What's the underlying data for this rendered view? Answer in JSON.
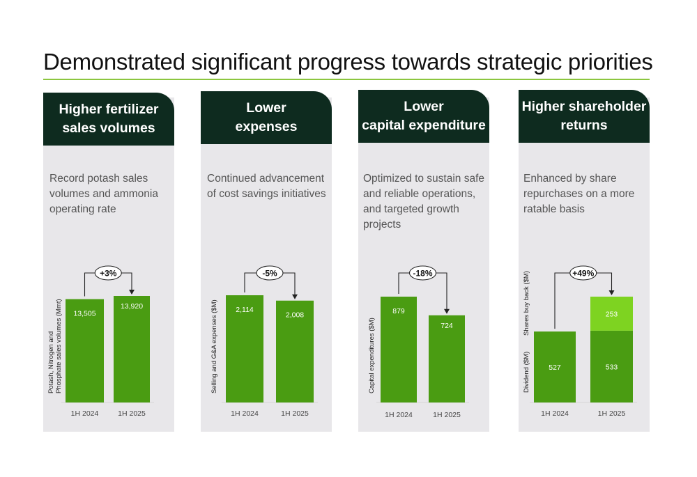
{
  "page": {
    "title": "Demonstrated significant progress towards strategic priorities"
  },
  "colors": {
    "bar_dark": "#4a9c12",
    "bar_light": "#7ed321",
    "header": "#0e2b1f",
    "rule": "#8cc63f",
    "panel": "#e8e7ea"
  },
  "panels": [
    {
      "heading": "Higher fertilizer\nsales volumes",
      "description": "Record potash sales\nvolumes and ammonia\noperating rate"
    },
    {
      "heading": "Lower\nexpenses",
      "description": "Continued advancement\nof cost savings initiatives"
    },
    {
      "heading": "Lower\ncapital expenditure",
      "description": "Optimized to sustain safe\nand reliable operations,\nand targeted growth\nprojects"
    },
    {
      "heading": "Higher shareholder\nreturns",
      "description": "Enhanced by share\nrepurchases on a more\nratable basis"
    }
  ],
  "chart_data": [
    {
      "type": "bar",
      "categories": [
        "1H 2024",
        "1H 2025"
      ],
      "series": [
        {
          "values": [
            13505,
            13920
          ],
          "labels": [
            "13,505",
            "13,920"
          ]
        }
      ],
      "ylabel": "Potash, Nitrogen and\nPhosphate sales volumes (Mmt)",
      "change": "+3%"
    },
    {
      "type": "bar",
      "categories": [
        "1H 2024",
        "1H 2025"
      ],
      "series": [
        {
          "values": [
            2114,
            2008
          ],
          "labels": [
            "2,114",
            "2,008"
          ]
        }
      ],
      "ylabel": "Selling and G&A expenses ($M)",
      "change": "-5%"
    },
    {
      "type": "bar",
      "categories": [
        "1H 2024",
        "1H 2025"
      ],
      "series": [
        {
          "values": [
            879,
            724
          ],
          "labels": [
            "879",
            "724"
          ]
        }
      ],
      "ylabel": "Capital expenditures ($M)",
      "change": "-18%"
    },
    {
      "type": "bar",
      "stacked": true,
      "categories": [
        "1H 2024",
        "1H 2025"
      ],
      "series": [
        {
          "name": "Dividend ($M)",
          "values": [
            527,
            533
          ],
          "labels": [
            "527",
            "533"
          ],
          "color": "#4a9c12"
        },
        {
          "name": "Shares buy back ($M)",
          "values": [
            0,
            253
          ],
          "labels": [
            "",
            "253"
          ],
          "color": "#7ed321"
        }
      ],
      "change": "+49%"
    }
  ]
}
